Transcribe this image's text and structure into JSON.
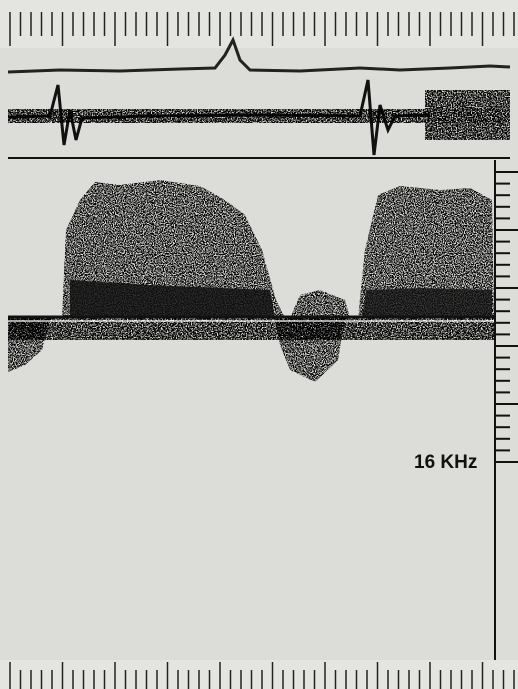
{
  "label": "16 KHz"
}
